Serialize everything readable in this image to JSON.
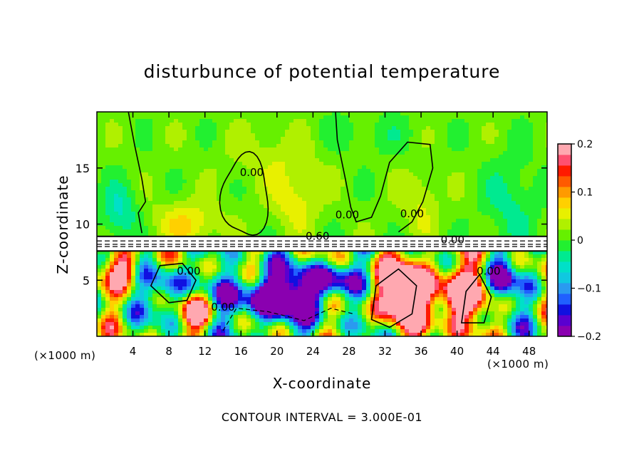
{
  "chart_data": {
    "type": "heatmap",
    "title": "disturbunce of potential temperature",
    "xlabel": "X-coordinate",
    "ylabel": "Z-coordinate",
    "x_unit": "(×1000 m)",
    "xlim": [
      0,
      50
    ],
    "ylim": [
      0,
      20
    ],
    "x_ticks": [
      4,
      8,
      12,
      16,
      20,
      24,
      28,
      32,
      36,
      40,
      44,
      48
    ],
    "y_ticks": [
      5,
      10,
      15
    ],
    "colorbar": {
      "range": [
        -0.2,
        0.2
      ],
      "ticks": [
        {
          "value": 0.2,
          "label": "0.2"
        },
        {
          "value": 0.1,
          "label": "0.1"
        },
        {
          "value": 0,
          "label": "0"
        },
        {
          "value": -0.1,
          "label": "−0.1"
        },
        {
          "value": -0.2,
          "label": "−0.2"
        }
      ],
      "colors": [
        "#8a00b0",
        "#5a00d0",
        "#1010e0",
        "#2060ff",
        "#2a9af0",
        "#10c8e0",
        "#00e0c8",
        "#00ea90",
        "#22f030",
        "#66f000",
        "#b0f000",
        "#e8f000",
        "#ffd000",
        "#ff9a00",
        "#ff5a00",
        "#ff1a00",
        "#ff5070",
        "#ffa8b0"
      ]
    },
    "contour_interval_text": "CONTOUR INTERVAL = 3.000E-01",
    "contour_labels": [
      "0.60",
      "0.00",
      "0.00",
      "0.00",
      "0.00",
      "0.00",
      "0.00",
      "0.00"
    ],
    "fields": [
      {
        "region": "upper",
        "z_range": [
          9,
          20
        ],
        "value_range": [
          -0.05,
          0.08
        ]
      },
      {
        "region": "inversion",
        "z_range": [
          7.6,
          9
        ],
        "value": 0.6
      },
      {
        "region": "lower",
        "z_range": [
          0,
          7.6
        ],
        "value_range": [
          -0.2,
          0.2
        ]
      }
    ]
  }
}
